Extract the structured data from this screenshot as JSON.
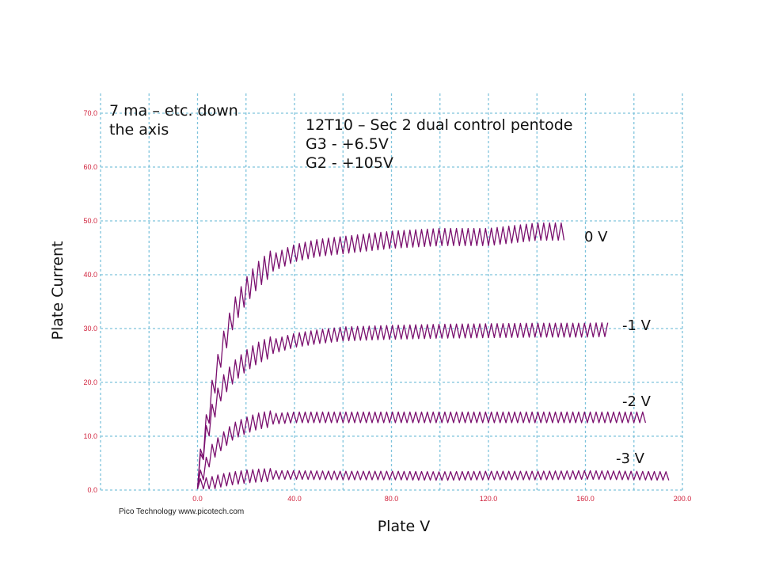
{
  "annotations": {
    "note_left_line1": "7 ma – etc. down",
    "note_left_line2": "the axis",
    "note_right_line1": "12T10 – Sec 2 dual control pentode",
    "note_right_line2": "G3 - +6.5V",
    "note_right_line3": "G2 - +105V"
  },
  "credit": "Pico Technology  www.picotech.com",
  "colors": {
    "trace": "#7a0f6e",
    "grid": "#7fc4dc",
    "tick_label": "#d0223c",
    "axis_label": "#111111"
  },
  "chart_data": {
    "type": "line",
    "title": "",
    "xlabel": "Plate V",
    "ylabel": "Plate Current",
    "xlim": [
      -40,
      200
    ],
    "ylim": [
      0,
      70
    ],
    "x_ticks": [
      "0.0",
      "40.0",
      "80.0",
      "120.0",
      "160.0",
      "200.0"
    ],
    "y_ticks": [
      "0.0",
      "10.0",
      "20.0",
      "30.0",
      "40.0",
      "50.0",
      "60.0",
      "70.0"
    ],
    "grid": true,
    "legend": "none",
    "series": [
      {
        "name": "0 V",
        "x": [
          0,
          3,
          6,
          10,
          15,
          20,
          25,
          30,
          40,
          50,
          60,
          80,
          100,
          120,
          140,
          152
        ],
        "y": [
          2,
          10,
          18,
          26,
          33,
          37,
          40,
          42,
          44,
          45,
          45.5,
          46.5,
          47,
          47,
          48,
          48
        ]
      },
      {
        "name": "-1 V",
        "x": [
          0,
          3,
          6,
          10,
          15,
          20,
          25,
          30,
          40,
          50,
          60,
          80,
          100,
          120,
          140,
          160,
          170
        ],
        "y": [
          2,
          9,
          14,
          19,
          22,
          24,
          25.5,
          26.5,
          27.8,
          28.5,
          29,
          29.3,
          29.5,
          29.6,
          29.7,
          29.7,
          29.8
        ]
      },
      {
        "name": "-2 V",
        "x": [
          0,
          3,
          6,
          10,
          15,
          20,
          25,
          30,
          40,
          60,
          80,
          100,
          120,
          140,
          160,
          185
        ],
        "y": [
          1,
          4,
          7,
          9,
          11,
          12,
          12.8,
          13.2,
          13.5,
          13.5,
          13.5,
          13.5,
          13.5,
          13.5,
          13.5,
          13.5
        ]
      },
      {
        "name": "-3 V",
        "x": [
          0,
          5,
          10,
          15,
          20,
          25,
          30,
          40,
          60,
          80,
          100,
          120,
          140,
          160,
          180,
          195
        ],
        "y": [
          0.8,
          1.2,
          1.8,
          2.2,
          2.5,
          2.7,
          2.8,
          2.8,
          2.7,
          2.7,
          2.6,
          2.7,
          2.7,
          2.8,
          2.7,
          2.6
        ]
      }
    ]
  }
}
